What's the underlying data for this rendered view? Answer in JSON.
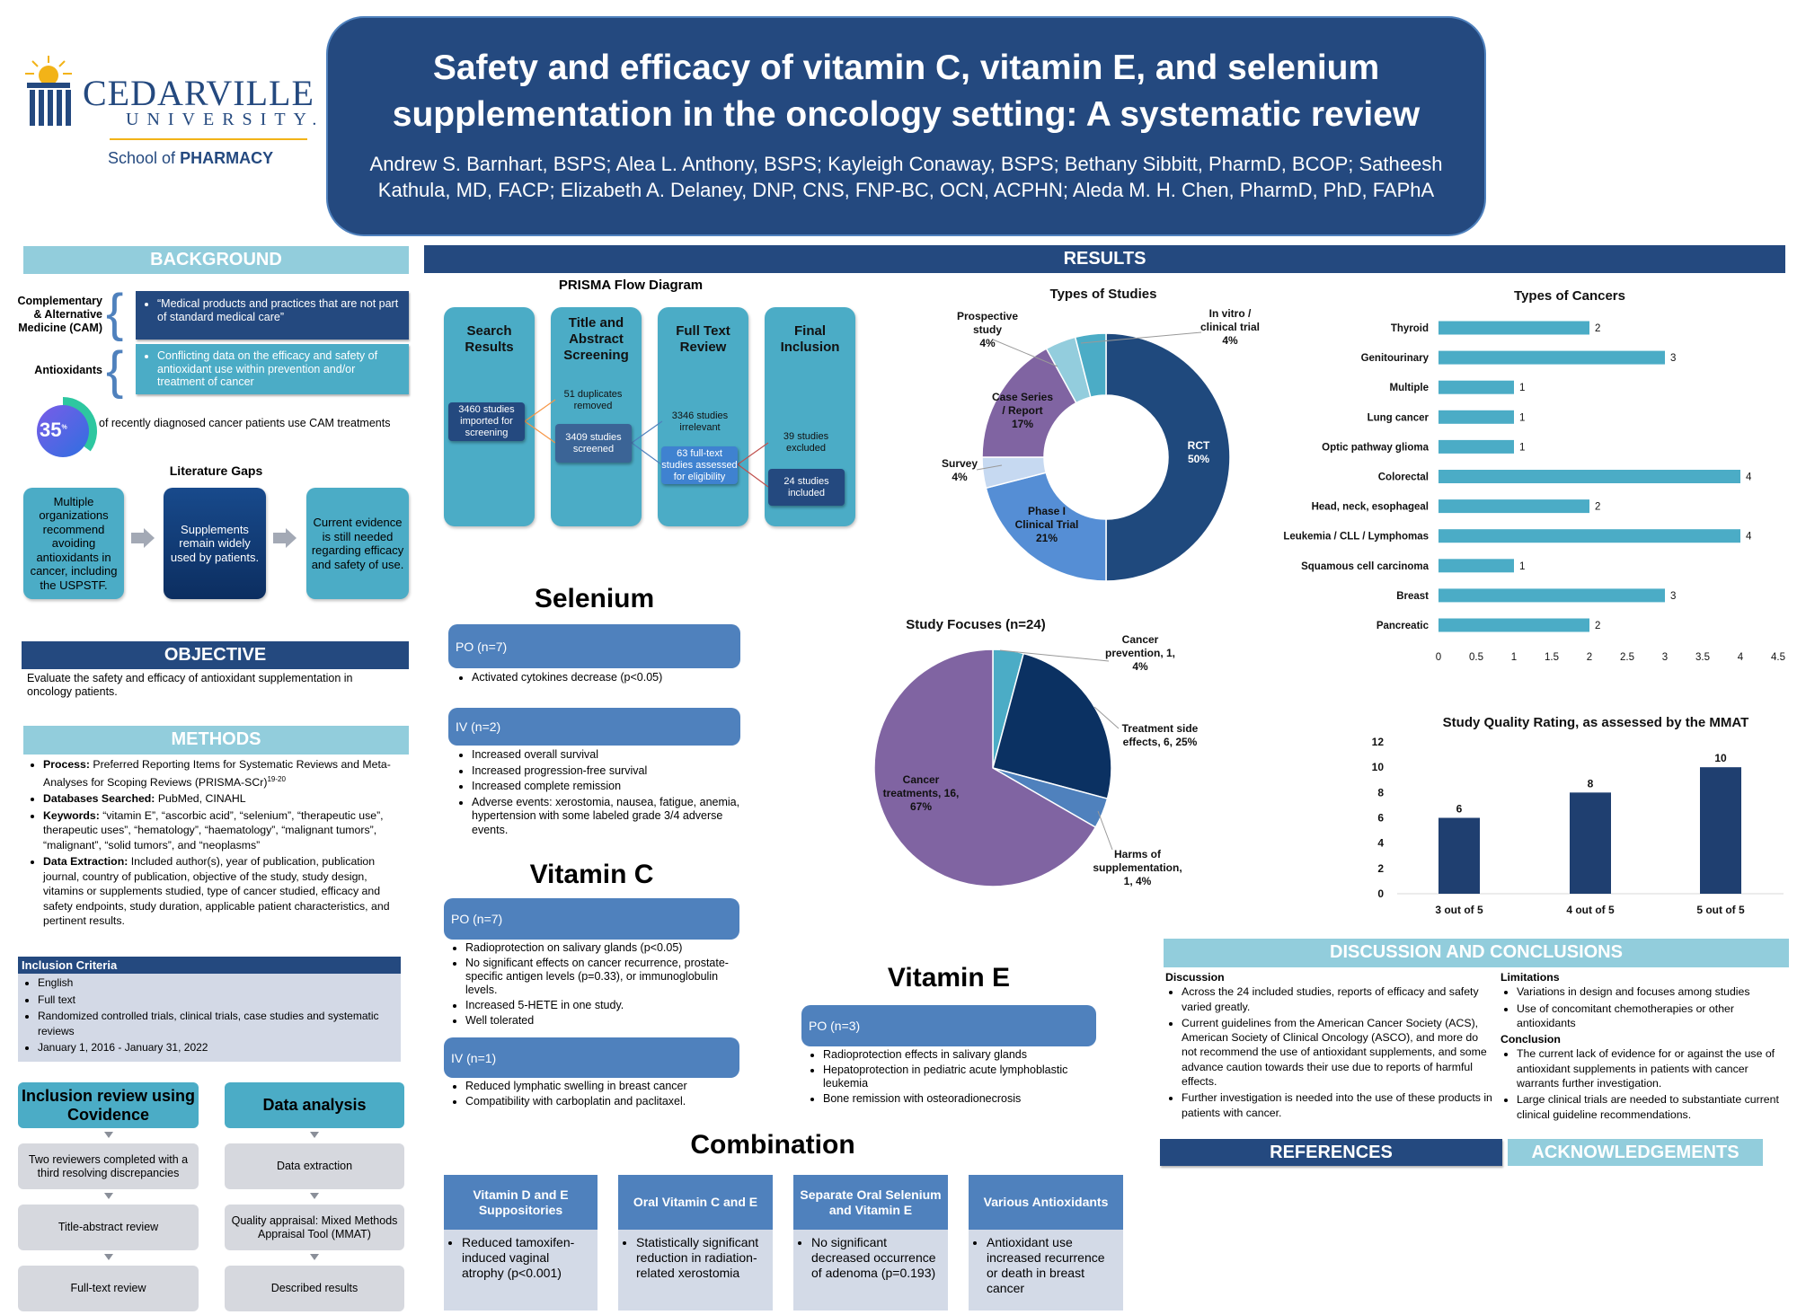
{
  "logo": {
    "university": "CEDARVILLE",
    "subtitle": "UNIVERSITY.",
    "school_prefix": "School of",
    "school": "PHARMACY"
  },
  "title": {
    "line1": "Safety and efficacy of vitamin C, vitamin E, and selenium",
    "line2": "supplementation in the oncology setting: A systematic review",
    "authors": "Andrew S. Barnhart, BSPS; Alea L. Anthony, BSPS; Kayleigh Conaway, BSPS; Bethany Sibbitt, PharmD, BCOP; Satheesh Kathula, MD, FACP; Elizabeth A. Delaney, DNP, CNS, FNP-BC, OCN, ACPHN; Aleda M. H. Chen, PharmD, PhD, FAPhA"
  },
  "background": {
    "header": "BACKGROUND",
    "cam_label": "Complementary & Alternative Medicine (CAM)",
    "cam_text": "“Medical products and practices that are not part of standard medical care”",
    "antioxidants_label": "Antioxidants",
    "antioxidants_text": "Conflicting data on the efficacy and safety of antioxidant use within prevention and/or treatment of cancer",
    "stat_value": "35",
    "stat_unit": "%",
    "stat_fraction": 0.35,
    "stat_text": "of recently diagnosed cancer patients use CAM treatments",
    "gaps_title": "Literature Gaps",
    "gaps": [
      "Multiple organizations recommend avoiding antioxidants in cancer, including the USPSTF.",
      "Supplements remain widely used by patients.",
      "Current evidence is still needed regarding efficacy and safety of use."
    ]
  },
  "objective": {
    "header": "OBJECTIVE",
    "text": "Evaluate the safety and efficacy of antioxidant supplementation in oncology patients."
  },
  "methods": {
    "header": "METHODS",
    "items": [
      {
        "label": "Process:",
        "text": " Preferred Reporting Items for Systematic Reviews and Meta-Analyses for Scoping Reviews (PRISMA-SCr)",
        "sup": "19-20"
      },
      {
        "label": "Databases Searched:",
        "text": " PubMed, CINAHL"
      },
      {
        "label": "Keywords:",
        "text": " “vitamin E”, “ascorbic acid”, “selenium”, “therapeutic use”, therapeutic uses”, “hematology”, “haematology”, “malignant tumors”, “malignant”, “solid tumors”, and “neoplasms”"
      },
      {
        "label": "Data Extraction:",
        "text": " Included author(s), year of publication, publication journal, country of publication, objective of the study, study design, vitamins or supplements studied, type of cancer studied, efficacy and safety endpoints, study duration, applicable patient characteristics, and pertinent results."
      }
    ],
    "inclusion_header": "Inclusion Criteria",
    "inclusion": [
      "English",
      "Full text",
      "Randomized controlled trials, clinical trials, case studies and systematic reviews",
      "January 1, 2016 - January 31, 2022"
    ],
    "review_flow": {
      "title": "Inclusion review using Covidence",
      "steps": [
        "Two reviewers completed with a third resolving discrepancies",
        "Title-abstract review",
        "Full-text review"
      ]
    },
    "analysis_flow": {
      "title": "Data analysis",
      "steps": [
        "Data extraction",
        "Quality appraisal: Mixed Methods Appraisal Tool (MMAT)",
        "Described results"
      ]
    }
  },
  "results": {
    "header": "RESULTS",
    "prisma": {
      "title": "PRISMA Flow Diagram",
      "columns": [
        "Search Results",
        "Title and Abstract Screening",
        "Full Text Review",
        "Final Inclusion"
      ],
      "imported": "3460 studies imported for screening",
      "duplicates": "51 duplicates removed",
      "screened": "3409 studies screened",
      "irrelevant": "3346 studies irrelevant",
      "assessed": "63 full-text studies assessed for eligibility",
      "excluded": "39 studies excluded",
      "included": "24 studies included"
    },
    "selenium": {
      "title": "Selenium",
      "po_label": "PO (n=7)",
      "po_items": [
        "Activated cytokines decrease (p<0.05)"
      ],
      "iv_label": "IV (n=2)",
      "iv_items": [
        "Increased overall survival",
        "Increased progression-free survival",
        "Increased complete remission",
        "Adverse events:  xerostomia, nausea, fatigue, anemia, hypertension with some labeled grade 3/4 adverse events."
      ]
    },
    "vitamin_c": {
      "title": "Vitamin C",
      "po_label": "PO (n=7)",
      "po_items": [
        "Radioprotection on salivary glands (p<0.05)",
        "No significant effects on cancer recurrence, prostate-specific antigen levels (p=0.33), or immunoglobulin levels.",
        "Increased 5-HETE in one study.",
        "Well tolerated"
      ],
      "iv_label": "IV (n=1)",
      "iv_items": [
        "Reduced lymphatic swelling in breast cancer",
        "Compatibility with carboplatin and paclitaxel."
      ]
    },
    "vitamin_e": {
      "title": "Vitamin E",
      "po_label": "PO (n=3)",
      "po_items": [
        "Radioprotection effects in salivary glands",
        "Hepatoprotection in pediatric acute lymphoblastic leukemia",
        "Bone remission with osteoradionecrosis"
      ]
    },
    "combination": {
      "title": "Combination",
      "columns": [
        {
          "header": "Vitamin D and E Suppositories",
          "text": "Reduced tamoxifen-induced vaginal atrophy (p<0.001)"
        },
        {
          "header": "Oral Vitamin C and E",
          "text": "Statistically significant reduction in radiation-related xerostomia"
        },
        {
          "header": "Separate Oral Selenium and Vitamin E",
          "text": " No significant decreased occurrence of adenoma (p=0.193)"
        },
        {
          "header": "Various Antioxidants",
          "text": "Antioxidant use increased  recurrence or death in breast cancer"
        }
      ]
    }
  },
  "chart_data": [
    {
      "type": "pie",
      "variant": "donut",
      "title": "Types of Studies",
      "slices": [
        {
          "label_lines": [
            "RCT",
            "50%"
          ],
          "value": 50,
          "color": "#1f497d"
        },
        {
          "label_lines": [
            "Phase I",
            "Clinical Trial",
            "21%"
          ],
          "value": 21,
          "color": "#558ed5"
        },
        {
          "label_lines": [
            "Survey",
            "4%"
          ],
          "value": 4,
          "color": "#c6d9f1"
        },
        {
          "label_lines": [
            "Case Series",
            "/ Report",
            "17%"
          ],
          "value": 17,
          "color": "#8064a2"
        },
        {
          "label_lines": [
            "Prospective",
            "study",
            "4%"
          ],
          "value": 4,
          "color": "#93cddd"
        },
        {
          "label_lines": [
            "In vitro /",
            "clinical trial",
            "4%"
          ],
          "value": 4,
          "color": "#4bacc6"
        }
      ]
    },
    {
      "type": "bar",
      "orientation": "horizontal",
      "title": "Types of Cancers",
      "categories": [
        "Thyroid",
        "Genitourinary",
        "Multiple",
        "Lung cancer",
        "Optic pathway glioma",
        "Colorectal",
        "Head, neck, esophageal",
        "Leukemia / CLL / Lymphomas",
        "Squamous cell carcinoma",
        "Breast",
        "Pancreatic"
      ],
      "values": [
        2,
        3,
        1,
        1,
        1,
        4,
        2,
        4,
        1,
        3,
        2
      ],
      "xlim": [
        0,
        4.5
      ],
      "xticks": [
        "0",
        "0.5",
        "1",
        "1.5",
        "2",
        "2.5",
        "3",
        "3.5",
        "4",
        "4.5"
      ],
      "color": "#4bacc6",
      "grid": false
    },
    {
      "type": "pie",
      "title": "Study Focuses (n=24)",
      "slices": [
        {
          "label_lines": [
            "Cancer",
            "prevention, 1,",
            "4%"
          ],
          "value": 1,
          "color": "#4bacc6"
        },
        {
          "label_lines": [
            "Treatment side",
            "effects, 6, 25%"
          ],
          "value": 6,
          "color": "#0b3162"
        },
        {
          "label_lines": [
            "Harms of",
            "supplementation,",
            "1, 4%"
          ],
          "value": 1,
          "color": "#4f81bd"
        },
        {
          "label_lines": [
            "Cancer",
            "treatments, 16,",
            "67%"
          ],
          "value": 16,
          "color": "#8064a2"
        }
      ]
    },
    {
      "type": "bar",
      "title": "Study Quality Rating, as assessed by the MMAT",
      "categories": [
        "3 out of 5",
        "4 out of 5",
        "5 out of 5"
      ],
      "values": [
        6,
        8,
        10
      ],
      "ylim": [
        0,
        12
      ],
      "yticks": [
        "0",
        "2",
        "4",
        "6",
        "8",
        "10",
        "12"
      ],
      "color": "#1f3f70",
      "grid": false
    }
  ],
  "discussion": {
    "header": "DISCUSSION AND CONCLUSIONS",
    "discussion_title": "Discussion",
    "discussion_items": [
      "Across the 24 included studies, reports of efficacy and safety varied greatly.",
      "Current guidelines from the American Cancer Society (ACS), American Society of Clinical Oncology (ASCO), and more do not recommend the use of antioxidant supplements, and some advance caution towards their use due to reports of harmful effects.",
      "Further investigation is needed into the use of these products in patients with cancer."
    ],
    "limitations_title": "Limitations",
    "limitations_items": [
      "Variations in design and focuses among studies",
      "Use of concomitant chemotherapies or other antioxidants"
    ],
    "conclusion_title": "Conclusion",
    "conclusion_items": [
      "The current lack of evidence for or against the use of antioxidant supplements in patients with cancer warrants further investigation.",
      "Large clinical trials are needed to substantiate current clinical guideline recommendations."
    ]
  },
  "references": {
    "header": "REFERENCES"
  },
  "acknowledgements": {
    "header": "ACKNOWLEDGEMENTS"
  }
}
